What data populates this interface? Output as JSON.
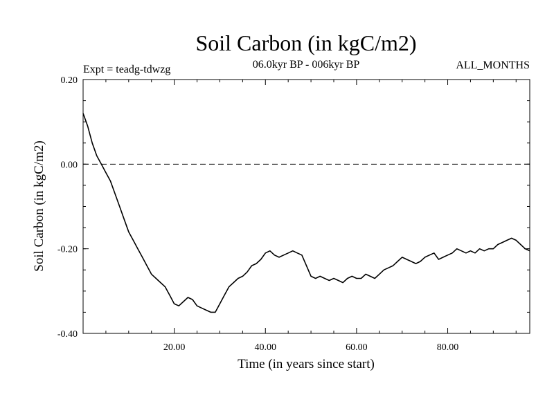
{
  "chart_data": {
    "type": "line",
    "title": "Soil Carbon (in kgC/m2)",
    "subtitle": "06.0kyr BP - 006kyr BP",
    "left_annotation": "Expt = teadg-tdwzg",
    "right_annotation": "ALL_MONTHS",
    "xlabel": "Time (in years since start)",
    "ylabel": "Soil Carbon (in kgC/m2)",
    "xlim": [
      0,
      98
    ],
    "ylim": [
      -0.4,
      0.2
    ],
    "x_ticks": [
      {
        "value": 20,
        "label": "20.00"
      },
      {
        "value": 40,
        "label": "40.00"
      },
      {
        "value": 60,
        "label": "60.00"
      },
      {
        "value": 80,
        "label": "80.00"
      }
    ],
    "y_ticks": [
      {
        "value": 0.2,
        "label": "0.20"
      },
      {
        "value": 0.0,
        "label": "0.00"
      },
      {
        "value": -0.2,
        "label": "-0.20"
      },
      {
        "value": -0.4,
        "label": "-0.40"
      }
    ],
    "reference_line": {
      "y": 0.0,
      "style": "dashed"
    },
    "series": [
      {
        "name": "Soil Carbon",
        "x": [
          0,
          1,
          2,
          3,
          4,
          5,
          6,
          7,
          8,
          9,
          10,
          11,
          12,
          13,
          14,
          15,
          16,
          17,
          18,
          19,
          20,
          21,
          22,
          23,
          24,
          25,
          26,
          27,
          28,
          29,
          30,
          31,
          32,
          33,
          34,
          35,
          36,
          37,
          38,
          39,
          40,
          41,
          42,
          43,
          44,
          45,
          46,
          47,
          48,
          49,
          50,
          51,
          52,
          53,
          54,
          55,
          56,
          57,
          58,
          59,
          60,
          61,
          62,
          63,
          64,
          65,
          66,
          67,
          68,
          69,
          70,
          71,
          72,
          73,
          74,
          75,
          76,
          77,
          78,
          79,
          80,
          81,
          82,
          83,
          84,
          85,
          86,
          87,
          88,
          89,
          90,
          91,
          92,
          93,
          94,
          95,
          96,
          97,
          98
        ],
        "values": [
          0.12,
          0.09,
          0.05,
          0.02,
          0.0,
          -0.02,
          -0.04,
          -0.07,
          -0.1,
          -0.13,
          -0.16,
          -0.18,
          -0.2,
          -0.22,
          -0.24,
          -0.26,
          -0.27,
          -0.28,
          -0.29,
          -0.31,
          -0.33,
          -0.335,
          -0.325,
          -0.315,
          -0.32,
          -0.335,
          -0.34,
          -0.345,
          -0.35,
          -0.35,
          -0.33,
          -0.31,
          -0.29,
          -0.28,
          -0.27,
          -0.265,
          -0.255,
          -0.24,
          -0.235,
          -0.225,
          -0.21,
          -0.205,
          -0.215,
          -0.22,
          -0.215,
          -0.21,
          -0.205,
          -0.21,
          -0.215,
          -0.24,
          -0.265,
          -0.27,
          -0.265,
          -0.27,
          -0.275,
          -0.27,
          -0.275,
          -0.28,
          -0.27,
          -0.265,
          -0.27,
          -0.27,
          -0.26,
          -0.265,
          -0.27,
          -0.26,
          -0.25,
          -0.245,
          -0.24,
          -0.23,
          -0.22,
          -0.225,
          -0.23,
          -0.235,
          -0.23,
          -0.22,
          -0.215,
          -0.21,
          -0.225,
          -0.22,
          -0.215,
          -0.21,
          -0.2,
          -0.205,
          -0.21,
          -0.205,
          -0.21,
          -0.2,
          -0.205,
          -0.2,
          -0.2,
          -0.19,
          -0.185,
          -0.18,
          -0.175,
          -0.18,
          -0.19,
          -0.2,
          -0.205
        ]
      }
    ]
  }
}
